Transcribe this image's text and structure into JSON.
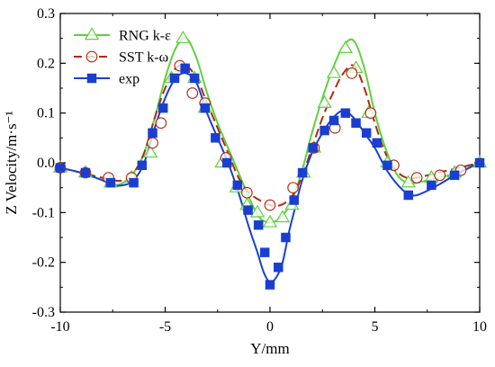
{
  "chart_data": {
    "type": "line",
    "title": "",
    "xlabel": "Y/mm",
    "ylabel": "Z Velocity/m·s⁻¹",
    "xlim": [
      -10,
      10
    ],
    "ylim": [
      -0.3,
      0.3
    ],
    "xticks": [
      -10,
      -5,
      0,
      5,
      10
    ],
    "yticks": [
      -0.3,
      -0.2,
      -0.1,
      0.0,
      0.1,
      0.2,
      0.3
    ],
    "ytick_labels": [
      "-0.3",
      "-0.2",
      "-0.1",
      "0.0",
      "0.1",
      "0.2",
      "0.3"
    ],
    "grid": false,
    "legend_position": "top-left",
    "series": [
      {
        "name": "RNG k-ε",
        "color": "#5fd040",
        "marker": "triangle-open",
        "dash": "solid",
        "curve_x": [
          -10,
          -9,
          -8,
          -7.5,
          -7,
          -6.5,
          -6,
          -5.5,
          -5,
          -4.5,
          -4,
          -3.5,
          -3,
          -2.5,
          -2,
          -1.5,
          -1,
          -0.5,
          0,
          0.5,
          1,
          1.5,
          2,
          2.5,
          3,
          3.5,
          4,
          4.5,
          5,
          5.5,
          6,
          6.5,
          7,
          8,
          9,
          10
        ],
        "curve_y": [
          -0.01,
          -0.02,
          -0.035,
          -0.045,
          -0.04,
          -0.02,
          0.02,
          0.09,
          0.17,
          0.23,
          0.25,
          0.21,
          0.14,
          0.08,
          0.03,
          -0.02,
          -0.07,
          -0.11,
          -0.12,
          -0.11,
          -0.08,
          -0.02,
          0.06,
          0.13,
          0.19,
          0.235,
          0.245,
          0.19,
          0.1,
          0.03,
          -0.02,
          -0.04,
          -0.04,
          -0.03,
          -0.02,
          0.0
        ],
        "marker_x": [
          -10,
          -8.8,
          -7.6,
          -6.6,
          -5.7,
          -4.7,
          -4.15,
          -3.6,
          -3.1,
          -2.3,
          -1.6,
          -1.1,
          -0.6,
          0.0,
          0.6,
          1.05,
          1.6,
          2.1,
          2.6,
          3.05,
          3.6,
          4.1,
          4.7,
          5.6,
          6.6,
          7.7,
          8.8,
          10
        ],
        "marker_y": [
          -0.01,
          -0.02,
          -0.04,
          -0.03,
          0.02,
          0.17,
          0.25,
          0.17,
          0.11,
          0.0,
          -0.05,
          -0.085,
          -0.1,
          -0.12,
          -0.11,
          -0.085,
          -0.02,
          0.03,
          0.12,
          0.18,
          0.23,
          0.19,
          0.1,
          0.0,
          -0.04,
          -0.03,
          -0.02,
          0.0
        ]
      },
      {
        "name": "SST k-ω",
        "color": "#b02a10",
        "marker": "circle-open",
        "dash": "long-dash",
        "curve_x": [
          -10,
          -9,
          -8,
          -7.5,
          -7,
          -6.5,
          -6,
          -5.5,
          -5,
          -4.5,
          -4,
          -3.5,
          -3,
          -2.5,
          -2,
          -1.5,
          -1,
          -0.5,
          0,
          0.5,
          1,
          1.5,
          2,
          2.5,
          3,
          3.5,
          4,
          4.5,
          5,
          5.5,
          6,
          6.5,
          7,
          8,
          9,
          10
        ],
        "curve_y": [
          -0.01,
          -0.02,
          -0.03,
          -0.035,
          -0.035,
          -0.02,
          0.02,
          0.09,
          0.15,
          0.19,
          0.195,
          0.17,
          0.12,
          0.07,
          0.02,
          -0.03,
          -0.06,
          -0.075,
          -0.085,
          -0.085,
          -0.07,
          -0.03,
          0.03,
          0.09,
          0.14,
          0.18,
          0.195,
          0.15,
          0.08,
          0.02,
          -0.015,
          -0.03,
          -0.03,
          -0.02,
          -0.01,
          0.0
        ],
        "marker_x": [
          -10,
          -8.8,
          -7.7,
          -6.6,
          -5.6,
          -5.2,
          -4.3,
          -3.7,
          -3.1,
          -2.1,
          -1.1,
          0.0,
          1.1,
          2.1,
          3.1,
          3.9,
          4.8,
          5.9,
          7.0,
          8.1,
          9.1
        ],
        "marker_y": [
          -0.01,
          -0.02,
          -0.03,
          -0.03,
          0.04,
          0.08,
          0.195,
          0.14,
          0.12,
          0.01,
          -0.06,
          -0.085,
          -0.05,
          0.03,
          0.07,
          0.18,
          0.1,
          -0.005,
          -0.03,
          -0.025,
          -0.015
        ]
      },
      {
        "name": "exp",
        "color": "#1a3fd0",
        "marker": "square-filled",
        "dash": "solid",
        "curve_x": [
          -10,
          -9,
          -8,
          -7.5,
          -7,
          -6.5,
          -6,
          -5.5,
          -5,
          -4.5,
          -4,
          -3.5,
          -3,
          -2.5,
          -2,
          -1.5,
          -1,
          -0.6,
          -0.3,
          0,
          0.3,
          0.6,
          0.9,
          1.2,
          1.5,
          2,
          2.5,
          3,
          3.5,
          4,
          4.5,
          5,
          5.5,
          6,
          6.5,
          7,
          8,
          9,
          10
        ],
        "curve_y": [
          -0.01,
          -0.02,
          -0.035,
          -0.045,
          -0.045,
          -0.035,
          0.0,
          0.07,
          0.13,
          0.17,
          0.18,
          0.16,
          0.1,
          0.05,
          0.0,
          -0.06,
          -0.13,
          -0.18,
          -0.22,
          -0.24,
          -0.23,
          -0.2,
          -0.14,
          -0.09,
          -0.04,
          0.02,
          0.06,
          0.09,
          0.105,
          0.09,
          0.06,
          0.03,
          -0.01,
          -0.04,
          -0.06,
          -0.065,
          -0.045,
          -0.02,
          0.0
        ],
        "marker_x": [
          -10,
          -8.8,
          -7.6,
          -6.5,
          -6.1,
          -5.6,
          -5.1,
          -4.55,
          -4.05,
          -3.6,
          -3.1,
          -2.6,
          -2.05,
          -1.55,
          -1.05,
          -0.55,
          -0.25,
          0.0,
          0.4,
          0.75,
          1.15,
          1.55,
          2.05,
          2.6,
          3.05,
          3.6,
          4.1,
          4.6,
          5.1,
          5.6,
          6.6,
          7.7,
          8.8,
          10
        ],
        "marker_y": [
          -0.01,
          -0.02,
          -0.04,
          -0.04,
          -0.005,
          0.06,
          0.11,
          0.17,
          0.19,
          0.17,
          0.11,
          0.05,
          0.0,
          -0.045,
          -0.095,
          -0.125,
          -0.18,
          -0.245,
          -0.21,
          -0.15,
          -0.075,
          -0.02,
          0.03,
          0.065,
          0.085,
          0.1,
          0.08,
          0.06,
          0.04,
          -0.005,
          -0.065,
          -0.045,
          -0.025,
          0.0
        ]
      }
    ]
  }
}
